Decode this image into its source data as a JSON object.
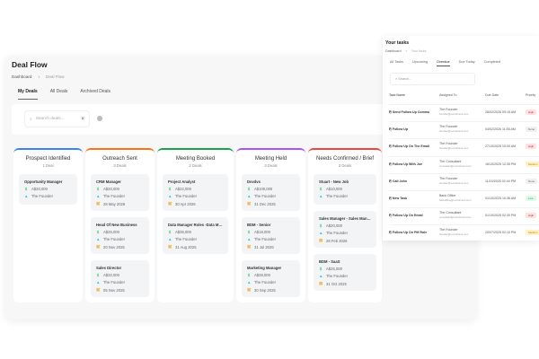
{
  "page": {
    "title": "Deal Flow",
    "breadcrumb": [
      "Dashboard",
      "Deal Flow"
    ],
    "tabs": [
      "My Deals",
      "All Deals",
      "Archived Deals"
    ],
    "search_placeholder": "Search deals..."
  },
  "columns": [
    {
      "title": "Prospect Identified",
      "count": "1 Deal",
      "color": "#3b82f6",
      "cards": [
        {
          "name": "Opportunity Manager",
          "amount": "A$20,000",
          "owner": "The Founder"
        }
      ]
    },
    {
      "title": "Outreach Sent",
      "count": "3 Deals",
      "color": "#f97316",
      "cards": [
        {
          "name": "CRM Manager",
          "amount": "A$20,000",
          "owner": "The Founder",
          "date": "28 May 2026"
        },
        {
          "name": "Head Of New Business",
          "amount": "A$25,000",
          "owner": "The Founder",
          "date": "20 Nov 2025"
        },
        {
          "name": "Sales Director",
          "amount": "A$32,000",
          "owner": "The Founder",
          "date": "05 Nov 2025"
        }
      ]
    },
    {
      "title": "Meeting Booked",
      "count": "2 Deals",
      "color": "#16a34a",
      "cards": [
        {
          "name": "Project Analyst",
          "amount": "A$22,000",
          "owner": "The Founder",
          "date": "30 Apr 2026"
        },
        {
          "name": "Data Manager Roles -Data Man...",
          "amount": "A$35,000",
          "owner": "The Founder",
          "date": "31 Aug 2025"
        }
      ]
    },
    {
      "title": "Meeting Held",
      "count": "3 Deals",
      "color": "#a855f7",
      "cards": [
        {
          "name": "Dvvdvs",
          "amount": "A$100,000",
          "owner": "The Founder",
          "date": "31 Dec 2025"
        },
        {
          "name": "BDM - Senior",
          "amount": "A$18,000",
          "owner": "The Founder",
          "date": "31 Jul 2026"
        },
        {
          "name": "Marketing Manager",
          "amount": "A$28,000",
          "owner": "The Founder",
          "date": "30 Sep 2025"
        }
      ]
    },
    {
      "title": "Needs Confirmed / Brief",
      "count": "3 Deals",
      "color": "#ef4444",
      "cards": [
        {
          "name": "Stuart - New Job",
          "amount": "A$10,000",
          "owner": "The Founder"
        },
        {
          "name": "Sales Manager - Sales Manager",
          "amount": "A$20,000",
          "owner": "The Founder",
          "date": "28 Feb 2026"
        },
        {
          "name": "BDM - SaaS",
          "amount": "A$25,000",
          "owner": "The Founder",
          "date": "31 Oct 2025"
        }
      ]
    }
  ],
  "tasks": {
    "title": "Your tasks",
    "breadcrumb": [
      "Dashboard",
      "Your tasks"
    ],
    "tabs": [
      "All Tasks",
      "Upcoming",
      "Overdue",
      "Due Today",
      "Completed"
    ],
    "active_tab": "Overdue",
    "search_placeholder": "Search...",
    "headers": [
      "Task Name",
      "Assigned To",
      "Due Date",
      "Priority"
    ],
    "rows": [
      {
        "name": "Send Follow Up Commu",
        "assignee": "The Founder",
        "email": "founder@recruitment.com",
        "due": "28/02/2026 09:15 AM",
        "priority": "High"
      },
      {
        "name": "Follow Up",
        "assignee": "The Founder",
        "email": "founder@recruitment.com",
        "due": "04/02/2026 11:00 AM",
        "priority": "None"
      },
      {
        "name": "Follow Up On The Email",
        "assignee": "The Founder",
        "email": "founder@recruitment.com",
        "due": "27/10/2025 10:00 AM",
        "priority": "High"
      },
      {
        "name": "Follow Up With Joe",
        "assignee": "The Consultant",
        "email": "consultant@recruitment.com",
        "due": "16/10/2025 12:35 PM",
        "priority": "Medium"
      },
      {
        "name": "Call John",
        "assignee": "The Founder",
        "email": "founder@recruitment.com",
        "due": "11/10/2025 02:44 PM",
        "priority": "None"
      },
      {
        "name": "New Task",
        "assignee": "Back Office",
        "email": "backoffice@recruitment.com",
        "due": "01/10/2025 10:36 AM",
        "priority": "Low"
      },
      {
        "name": "Follow Up On Email",
        "assignee": "The Consultant",
        "email": "consultant@recruitment.com",
        "due": "01/10/2025 02:30 PM",
        "priority": "High"
      },
      {
        "name": "Follow Up On PM Role",
        "assignee": "The Founder",
        "email": "founder@recruitment.com",
        "due": "20/07/2025 02:10 PM",
        "priority": "Medium"
      }
    ]
  },
  "priority_colors": {
    "High": [
      "#fde2e2",
      "#dc2626"
    ],
    "None": [
      "#eef0f2",
      "#666"
    ],
    "Medium": [
      "#fef3c7",
      "#d97706"
    ],
    "Low": [
      "#dcfce7",
      "#16a34a"
    ]
  }
}
